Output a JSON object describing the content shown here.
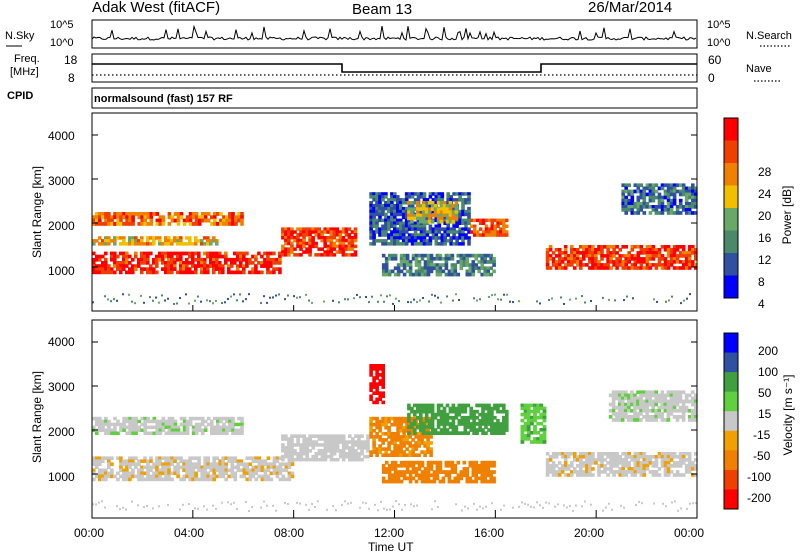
{
  "header": {
    "station": "Adak West (fitACF)",
    "beam": "Beam 13",
    "date": "26/Mar/2014"
  },
  "noise_panel": {
    "left_label": "N.Sky",
    "right_label": "N.Search",
    "left_ticks": [
      "10^5",
      "10^0"
    ],
    "right_ticks": [
      "10^5",
      "10^0"
    ]
  },
  "freq_panel": {
    "left_label_1": "Freq.",
    "left_label_2": "[MHz]",
    "right_label": "Nave",
    "left_ticks": [
      "18",
      "8"
    ],
    "right_ticks": [
      "60",
      "0"
    ]
  },
  "cpid_panel": {
    "label": "CPID",
    "text": "normalsound (fast) 157 RF"
  },
  "colors": {
    "power": [
      "#0000ff",
      "#3050a0",
      "#4a8a6a",
      "#6aa86a",
      "#f0c000",
      "#f08000",
      "#f04000",
      "#ff0000"
    ],
    "velocity": [
      "#0000ff",
      "#3050a0",
      "#40a040",
      "#60d040",
      "#c8c8c8",
      "#f0a000",
      "#f08000",
      "#f04000",
      "#ff0000"
    ]
  },
  "chart_data": [
    {
      "type": "heatmap",
      "name": "power",
      "ylabel": "Slant Range [km]",
      "y_ticks": [
        "1000",
        "2000",
        "3000",
        "4000"
      ],
      "ylim": [
        0,
        4500
      ],
      "colorbar_label": "Power [dB]",
      "colorbar_ticks": [
        "28",
        "24",
        "20",
        "16",
        "12",
        "8",
        "4"
      ],
      "colorbar_range": [
        0,
        32
      ],
      "bands": [
        {
          "t0": 0.0,
          "t1": 7.5,
          "r0": 850,
          "r1": 1350,
          "level": 0.9
        },
        {
          "t0": 0.0,
          "t1": 6.0,
          "r0": 1950,
          "r1": 2250,
          "level": 0.75
        },
        {
          "t0": 0.0,
          "t1": 5.0,
          "r0": 1500,
          "r1": 1700,
          "level": 0.6
        },
        {
          "t0": 7.5,
          "t1": 10.5,
          "r0": 1250,
          "r1": 1900,
          "level": 0.85
        },
        {
          "t0": 11.0,
          "t1": 15.0,
          "r0": 1500,
          "r1": 2700,
          "level": 0.2
        },
        {
          "t0": 12.5,
          "t1": 14.5,
          "r0": 2000,
          "r1": 2500,
          "level": 0.55
        },
        {
          "t0": 15.0,
          "t1": 16.5,
          "r0": 1700,
          "r1": 2100,
          "level": 0.8
        },
        {
          "t0": 11.5,
          "t1": 16.0,
          "r0": 800,
          "r1": 1300,
          "level": 0.3
        },
        {
          "t0": 18.0,
          "t1": 24.0,
          "r0": 950,
          "r1": 1500,
          "level": 0.85
        },
        {
          "t0": 21.0,
          "t1": 24.0,
          "r0": 2200,
          "r1": 2900,
          "level": 0.25
        }
      ]
    },
    {
      "type": "heatmap",
      "name": "velocity",
      "ylabel": "Slant Range [km]",
      "y_ticks": [
        "1000",
        "2000",
        "3000",
        "4000"
      ],
      "ylim": [
        0,
        4500
      ],
      "xlabel": "Time UT",
      "x_ticks": [
        "00:00",
        "04:00",
        "08:00",
        "12:00",
        "16:00",
        "20:00",
        "00:00"
      ],
      "xlim": [
        0,
        24
      ],
      "colorbar_label": "Velocity [m s⁻¹]",
      "colorbar_ticks": [
        "200",
        "100",
        "50",
        "15",
        "-15",
        "-50",
        "-100",
        "-200"
      ],
      "colorbar_range": [
        -250,
        250
      ],
      "bands": [
        {
          "t0": 0.0,
          "t1": 8.0,
          "r0": 850,
          "r1": 1400,
          "level": -5
        },
        {
          "t0": 0.0,
          "t1": 6.0,
          "r0": 1900,
          "r1": 2300,
          "level": 5
        },
        {
          "t0": 7.5,
          "t1": 11.0,
          "r0": 1300,
          "r1": 1900,
          "level": 0
        },
        {
          "t0": 11.0,
          "t1": 13.5,
          "r0": 1400,
          "r1": 2300,
          "level": -60
        },
        {
          "t0": 12.5,
          "t1": 16.5,
          "r0": 1900,
          "r1": 2600,
          "level": 80
        },
        {
          "t0": 11.5,
          "t1": 16.0,
          "r0": 800,
          "r1": 1300,
          "level": -70
        },
        {
          "t0": 17.0,
          "t1": 18.0,
          "r0": 1700,
          "r1": 2600,
          "level": 40
        },
        {
          "t0": 18.0,
          "t1": 24.0,
          "r0": 950,
          "r1": 1500,
          "level": -5
        },
        {
          "t0": 20.5,
          "t1": 24.0,
          "r0": 2200,
          "r1": 2900,
          "level": 5
        },
        {
          "t0": 11.0,
          "t1": 11.6,
          "r0": 2600,
          "r1": 3500,
          "level": -220
        }
      ]
    }
  ]
}
